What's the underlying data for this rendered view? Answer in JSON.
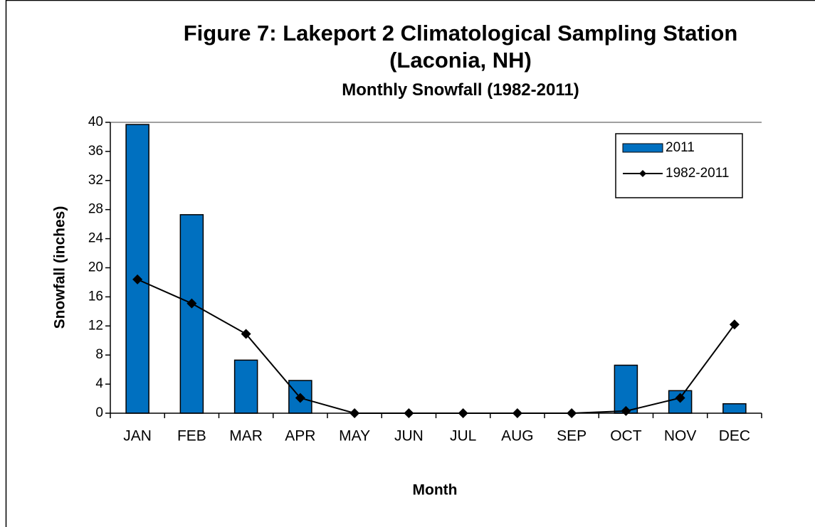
{
  "chart_data": {
    "type": "bar",
    "title": "Figure 7: Lakeport 2 Climatological Sampling Station (Laconia, NH)",
    "subtitle": "Monthly Snowfall (1982-2011)",
    "x_label": "Month",
    "y_label": "Snowfall (inches)",
    "categories": [
      "JAN",
      "FEB",
      "MAR",
      "APR",
      "MAY",
      "JUN",
      "JUL",
      "AUG",
      "SEP",
      "OCT",
      "NOV",
      "DEC"
    ],
    "series": [
      {
        "name": "2011",
        "type": "bar",
        "color": "#0070c0",
        "values": [
          39.7,
          27.3,
          7.3,
          4.5,
          0,
          0,
          0,
          0,
          0,
          6.6,
          3.1,
          1.3
        ]
      },
      {
        "name": "1982-2011",
        "type": "line",
        "color": "#000000",
        "values": [
          18.4,
          15.1,
          10.9,
          2.1,
          0,
          0,
          0,
          0,
          0,
          0.3,
          2.1,
          12.2
        ]
      }
    ],
    "ylim": [
      0,
      40
    ],
    "yticks": [
      0,
      4,
      8,
      12,
      16,
      20,
      24,
      28,
      32,
      36,
      40
    ],
    "legend": "upper-right"
  }
}
